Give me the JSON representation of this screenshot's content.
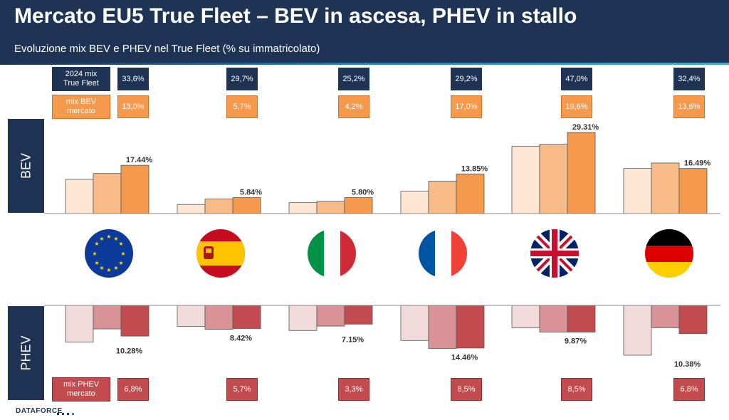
{
  "header": {
    "title": "Mercato EU5 True Fleet – BEV in ascesa, PHEV in stallo",
    "subtitle": "Evoluzione mix BEV e PHEV nel True Fleet (% su immatricolato)"
  },
  "side_labels": {
    "bev": "BEV",
    "phev": "PHEV"
  },
  "row_labels": {
    "true_fleet": "2024 mix\nTrue Fleet",
    "bev_market": "mix BEV\nmercato",
    "phev_market": "mix PHEV\nmercato"
  },
  "footer": {
    "logo": "DATAFORCE"
  },
  "colors": {
    "navy": "#1f3455",
    "bev": [
      "#fde6d3",
      "#f8bb88",
      "#f59a4d"
    ],
    "phev": [
      "#f2d9da",
      "#d99396",
      "#c24b4f"
    ]
  },
  "chart_data": {
    "type": "bar",
    "categories": [
      "eu-flag-icon",
      "spain-flag-icon",
      "italy-flag-icon",
      "france-flag-icon",
      "uk-flag-icon",
      "germany-flag-icon"
    ],
    "true_fleet_mix_2024": [
      "33,6%",
      "29,7%",
      "25,2%",
      "29,2%",
      "47,0%",
      "32,4%"
    ],
    "bev_market_mix": [
      "13,0%",
      "5,7%",
      "4,2%",
      "17,0%",
      "19,6%",
      "13,6%"
    ],
    "phev_market_mix": [
      "6,8%",
      "5,7%",
      "3,3%",
      "8,5%",
      "8,5%",
      "6,8%"
    ],
    "bev": {
      "values": [
        [
          7.5,
          8.8,
          10.6
        ],
        [
          2.0,
          3.2,
          3.5
        ],
        [
          2.4,
          2.7,
          3.5
        ],
        [
          4.9,
          7.1,
          8.7
        ],
        [
          14.8,
          15.2,
          17.8
        ],
        [
          9.9,
          11.1,
          9.9
        ]
      ],
      "labels": [
        "17.44%",
        "5.84%",
        "5.80%",
        "13.85%",
        "29.31%",
        "16.49%"
      ]
    },
    "phev": {
      "values": [
        [
          9.2,
          5.9,
          7.7
        ],
        [
          5.3,
          6.0,
          5.8
        ],
        [
          6.3,
          5.2,
          4.7
        ],
        [
          8.8,
          10.8,
          10.7
        ],
        [
          5.6,
          6.7,
          6.7
        ],
        [
          12.5,
          5.6,
          7.1
        ]
      ],
      "labels": [
        "10.28%",
        "8.42%",
        "7.15%",
        "14.46%",
        "9.87%",
        "10.38%"
      ]
    }
  }
}
